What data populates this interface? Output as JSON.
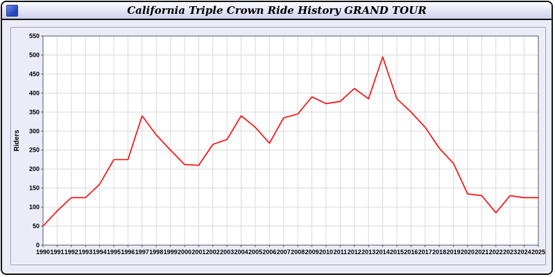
{
  "window": {
    "title": "California Triple Crown Ride History GRAND TOUR",
    "icon": "blue-app-icon"
  },
  "chart_data": {
    "type": "line",
    "title": "California Triple Crown Ride History GRAND TOUR",
    "xlabel": "",
    "ylabel": "Riders",
    "ylim": [
      0,
      550
    ],
    "ytick_step": 50,
    "grid": true,
    "legend_position": "none",
    "line_color": "#ff0000",
    "categories": [
      "1990",
      "1991",
      "1992",
      "1993",
      "1994",
      "1995",
      "1996",
      "1997",
      "1998",
      "1999",
      "2000",
      "2001",
      "2002",
      "2003",
      "2004",
      "2005",
      "2006",
      "2007",
      "2008",
      "2009",
      "2010",
      "2011",
      "2012",
      "2013",
      "2014",
      "2015",
      "2016",
      "2017",
      "2018",
      "2019",
      "2020",
      "2021",
      "2022",
      "2023",
      "2024",
      "2025"
    ],
    "values": [
      50,
      90,
      125,
      125,
      160,
      225,
      225,
      340,
      290,
      250,
      212,
      210,
      265,
      278,
      340,
      310,
      268,
      335,
      345,
      390,
      372,
      378,
      412,
      385,
      495,
      385,
      350,
      310,
      255,
      215,
      135,
      130,
      85,
      130,
      125,
      125
    ]
  },
  "colors": {
    "panel_bg": "#ececf9",
    "plot_bg": "#ffffff",
    "grid": "#d9d9d9",
    "axis": "#555566",
    "tick_text": "#000000"
  }
}
